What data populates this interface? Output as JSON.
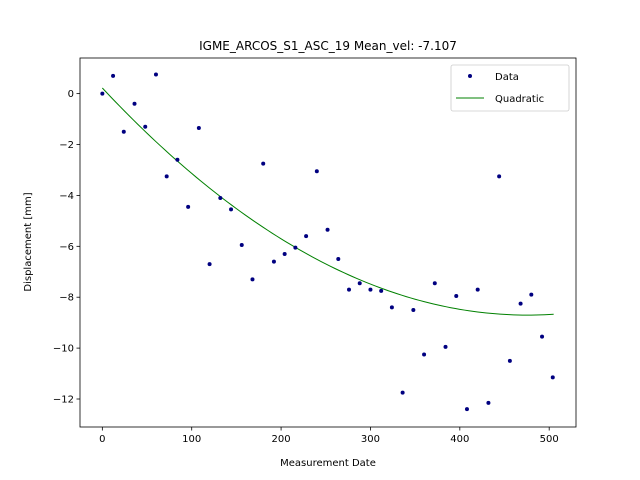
{
  "chart_data": {
    "type": "scatter",
    "title": "IGME_ARCOS_S1_ASC_19 Mean_vel: -7.107",
    "xlabel": "Measurement Date",
    "ylabel": "Displacement [mm]",
    "xlim": [
      -25,
      530
    ],
    "ylim": [
      -13.1,
      1.4
    ],
    "xticks": [
      0,
      100,
      200,
      300,
      400,
      500
    ],
    "yticks": [
      0,
      -2,
      -4,
      -6,
      -8,
      -10,
      -12
    ],
    "legend_position": "top-right",
    "grid": false,
    "series": [
      {
        "name": "Data",
        "kind": "points",
        "color": "#000080",
        "x": [
          0,
          12,
          24,
          36,
          48,
          60,
          72,
          84,
          96,
          108,
          120,
          132,
          144,
          156,
          168,
          180,
          192,
          204,
          216,
          228,
          240,
          252,
          264,
          276,
          288,
          300,
          312,
          324,
          336,
          348,
          360,
          372,
          384,
          396,
          408,
          420,
          432,
          444,
          456,
          468,
          480,
          492,
          504
        ],
        "y": [
          0.0,
          0.7,
          -1.5,
          -0.4,
          -1.3,
          0.75,
          -3.25,
          -2.6,
          -4.45,
          -1.35,
          -6.7,
          -4.1,
          -4.55,
          -5.95,
          -7.3,
          -2.75,
          -6.6,
          -6.3,
          -6.05,
          -5.6,
          -3.05,
          -5.35,
          -6.5,
          -7.7,
          -7.45,
          -7.7,
          -7.75,
          -8.4,
          -11.75,
          -8.5,
          -10.25,
          -7.45,
          -9.95,
          -7.95,
          -12.4,
          -7.7,
          -12.15,
          -3.25,
          -10.5,
          -8.25,
          -7.9,
          -9.55,
          -11.15
        ]
      },
      {
        "name": "Quadratic",
        "kind": "line",
        "color": "#008000",
        "coefficients": [
          0.22,
          -0.0375,
          3.94e-05
        ],
        "x_range": [
          0,
          505
        ]
      }
    ]
  }
}
